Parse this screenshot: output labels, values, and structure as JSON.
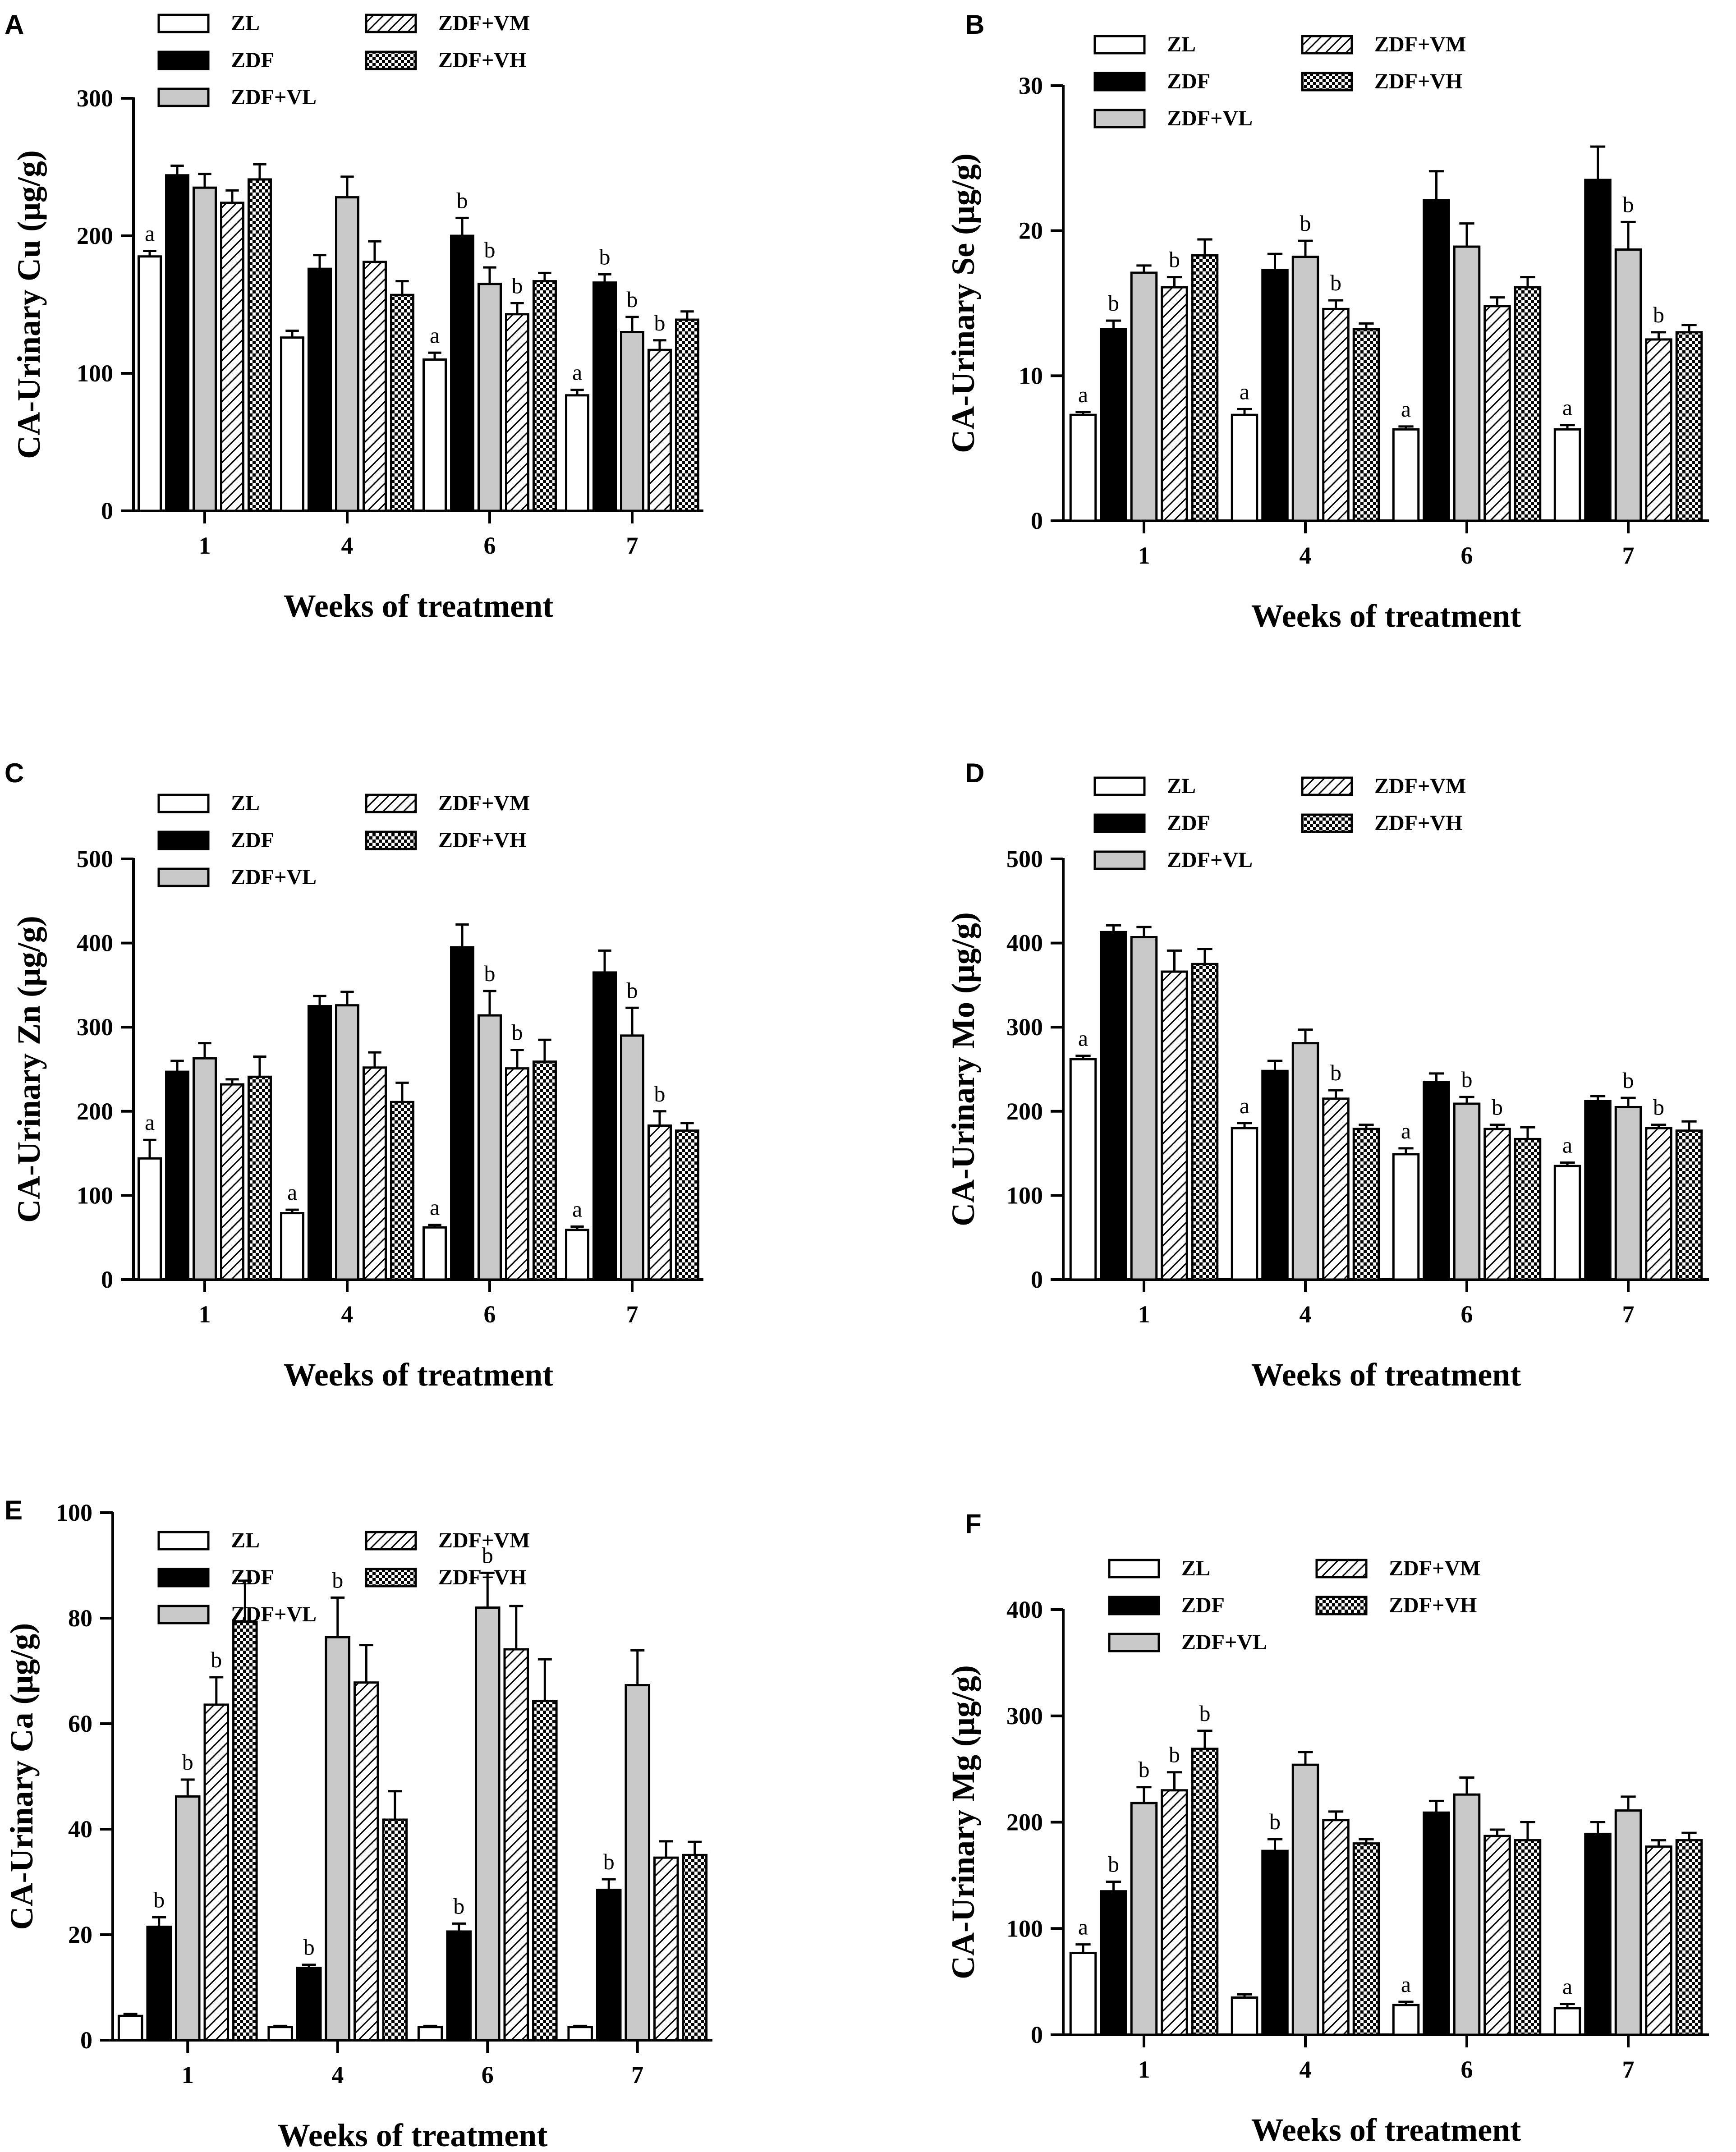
{
  "figure": {
    "legend": [
      {
        "name": "ZL",
        "fill": "#ffffff",
        "pattern": "none"
      },
      {
        "name": "ZDF",
        "fill": "#000000",
        "pattern": "none"
      },
      {
        "name": "ZDF+VL",
        "fill": "#c8c8c8",
        "pattern": "none"
      },
      {
        "name": "ZDF+VM",
        "fill": "#ffffff",
        "pattern": "hatch"
      },
      {
        "name": "ZDF+VH",
        "fill": "#ffffff",
        "pattern": "checker"
      }
    ]
  },
  "chart_data": [
    {
      "panel": "A",
      "type": "bar",
      "ylabel": "CA-Urinary Cu  (μg/g)",
      "xlabel": "Weeks of treatment",
      "categories": [
        "1",
        "4",
        "6",
        "7"
      ],
      "ylim": [
        0,
        300
      ],
      "yticks": [
        0,
        100,
        200,
        300
      ],
      "series": [
        {
          "name": "ZL",
          "values": [
            185,
            126,
            110,
            84
          ],
          "errors": [
            4,
            5,
            5,
            4
          ]
        },
        {
          "name": "ZDF",
          "values": [
            244,
            176,
            200,
            166
          ],
          "errors": [
            7,
            10,
            13,
            6
          ]
        },
        {
          "name": "ZDF+VL",
          "values": [
            235,
            228,
            165,
            130
          ],
          "errors": [
            10,
            15,
            12,
            11
          ]
        },
        {
          "name": "ZDF+VM",
          "values": [
            224,
            181,
            143,
            117
          ],
          "errors": [
            9,
            15,
            8,
            7
          ]
        },
        {
          "name": "ZDF+VH",
          "values": [
            241,
            157,
            167,
            139
          ],
          "errors": [
            11,
            10,
            6,
            6
          ]
        }
      ],
      "annotations": [
        [
          "a",
          null,
          null,
          null,
          null
        ],
        [
          null,
          null,
          null,
          null,
          null
        ],
        [
          "a",
          "b",
          "b",
          "b",
          null
        ],
        [
          "a",
          "b",
          "b",
          "b",
          null
        ]
      ]
    },
    {
      "panel": "B",
      "type": "bar",
      "ylabel": "CA-Urinary Se  (μg/g)",
      "xlabel": "Weeks of treatment",
      "categories": [
        "1",
        "4",
        "6",
        "7"
      ],
      "ylim": [
        0,
        30
      ],
      "yticks": [
        0,
        10,
        20,
        30
      ],
      "series": [
        {
          "name": "ZL",
          "values": [
            7.3,
            7.3,
            6.3,
            6.3
          ],
          "errors": [
            0.2,
            0.4,
            0.2,
            0.3
          ]
        },
        {
          "name": "ZDF",
          "values": [
            13.2,
            17.3,
            22.1,
            23.5
          ],
          "errors": [
            0.6,
            1.1,
            2.0,
            2.3
          ]
        },
        {
          "name": "ZDF+VL",
          "values": [
            17.1,
            18.2,
            18.9,
            18.7
          ],
          "errors": [
            0.5,
            1.1,
            1.6,
            1.9
          ]
        },
        {
          "name": "ZDF+VM",
          "values": [
            16.1,
            14.6,
            14.8,
            12.5
          ],
          "errors": [
            0.7,
            0.6,
            0.6,
            0.5
          ]
        },
        {
          "name": "ZDF+VH",
          "values": [
            18.3,
            13.2,
            16.1,
            13.0
          ],
          "errors": [
            1.1,
            0.4,
            0.7,
            0.5
          ]
        }
      ],
      "annotations": [
        [
          "a",
          "b",
          null,
          "b"
        ],
        [
          "a",
          null,
          "b",
          "b"
        ],
        [
          "a",
          null,
          null,
          null
        ],
        [
          "a",
          null,
          "b",
          "b"
        ]
      ]
    },
    {
      "panel": "C",
      "type": "bar",
      "ylabel": "CA-Urinary Zn  (μg/g)",
      "xlabel": "Weeks of treatment",
      "categories": [
        "1",
        "4",
        "6",
        "7"
      ],
      "ylim": [
        0,
        500
      ],
      "yticks": [
        0,
        100,
        200,
        300,
        400,
        500
      ],
      "series": [
        {
          "name": "ZL",
          "values": [
            144,
            79,
            62,
            59
          ],
          "errors": [
            22,
            4,
            3,
            4
          ]
        },
        {
          "name": "ZDF",
          "values": [
            247,
            325,
            395,
            365
          ],
          "errors": [
            13,
            12,
            27,
            26
          ]
        },
        {
          "name": "ZDF+VL",
          "values": [
            263,
            326,
            314,
            290
          ],
          "errors": [
            18,
            16,
            29,
            33
          ]
        },
        {
          "name": "ZDF+VM",
          "values": [
            232,
            252,
            251,
            183
          ],
          "errors": [
            6,
            18,
            22,
            17
          ]
        },
        {
          "name": "ZDF+VH",
          "values": [
            241,
            211,
            259,
            177
          ],
          "errors": [
            24,
            23,
            26,
            9
          ]
        }
      ],
      "annotations": [
        [
          "a",
          null,
          null,
          null
        ],
        [
          "a",
          null,
          null,
          null
        ],
        [
          "a",
          null,
          "b",
          "b"
        ],
        [
          "a",
          null,
          "b",
          "b"
        ]
      ]
    },
    {
      "panel": "D",
      "type": "bar",
      "ylabel": "CA-Urinary Mo  (μg/g)",
      "xlabel": "Weeks of treatment",
      "categories": [
        "1",
        "4",
        "6",
        "7"
      ],
      "ylim": [
        0,
        500
      ],
      "yticks": [
        0,
        100,
        200,
        300,
        400,
        500
      ],
      "series": [
        {
          "name": "ZL",
          "values": [
            262,
            180,
            149,
            135
          ],
          "errors": [
            4,
            6,
            7,
            4
          ]
        },
        {
          "name": "ZDF",
          "values": [
            413,
            248,
            235,
            212
          ],
          "errors": [
            8,
            12,
            10,
            6
          ]
        },
        {
          "name": "ZDF+VL",
          "values": [
            407,
            281,
            209,
            205
          ],
          "errors": [
            12,
            16,
            8,
            11
          ]
        },
        {
          "name": "ZDF+VM",
          "values": [
            366,
            215,
            179,
            180
          ],
          "errors": [
            25,
            10,
            5,
            4
          ]
        },
        {
          "name": "ZDF+VH",
          "values": [
            375,
            179,
            167,
            177
          ],
          "errors": [
            18,
            5,
            14,
            11
          ]
        }
      ],
      "annotations": [
        [
          "a",
          null,
          null,
          null,
          null
        ],
        [
          "a",
          null,
          null,
          "b"
        ],
        [
          "a",
          null,
          "b",
          "b"
        ],
        [
          "a",
          null,
          "b",
          "b"
        ]
      ]
    },
    {
      "panel": "E",
      "type": "bar",
      "ylabel": "CA-Urinary Ca  (μg/g)",
      "xlabel": "Weeks of treatment",
      "categories": [
        "1",
        "4",
        "6",
        "7"
      ],
      "ylim": [
        0,
        100
      ],
      "yticks": [
        0,
        20,
        40,
        60,
        80,
        100
      ],
      "series": [
        {
          "name": "ZL",
          "values": [
            4.6,
            2.5,
            2.5,
            2.5
          ],
          "errors": [
            0.4,
            0.2,
            0.2,
            0.2
          ]
        },
        {
          "name": "ZDF",
          "values": [
            21.5,
            13.7,
            20.6,
            28.5
          ],
          "errors": [
            1.8,
            0.6,
            1.5,
            2.0
          ]
        },
        {
          "name": "ZDF+VL",
          "values": [
            46.2,
            76.4,
            82.0,
            67.3
          ],
          "errors": [
            3.2,
            7.5,
            6.6,
            6.6
          ]
        },
        {
          "name": "ZDF+VM",
          "values": [
            63.6,
            67.8,
            74.1,
            34.6
          ],
          "errors": [
            5.2,
            7.1,
            8.2,
            3.1
          ]
        },
        {
          "name": "ZDF+VH",
          "values": [
            79.3,
            41.8,
            64.3,
            35.1
          ],
          "errors": [
            7.8,
            5.4,
            7.9,
            2.5
          ]
        }
      ],
      "annotations": [
        [
          null,
          "b",
          "b",
          "b"
        ],
        [
          null,
          "b",
          "b",
          null
        ],
        [
          null,
          "b",
          "b",
          null
        ],
        [
          null,
          "b",
          null,
          null
        ]
      ]
    },
    {
      "panel": "F",
      "type": "bar",
      "ylabel": "CA-Urinary Mg  (μg/g)",
      "xlabel": "Weeks of treatment",
      "categories": [
        "1",
        "4",
        "6",
        "7"
      ],
      "ylim": [
        0,
        400
      ],
      "yticks": [
        0,
        100,
        200,
        300,
        400
      ],
      "series": [
        {
          "name": "ZL",
          "values": [
            77,
            35,
            28,
            25
          ],
          "errors": [
            8,
            3,
            3,
            4
          ]
        },
        {
          "name": "ZDF",
          "values": [
            135,
            173,
            209,
            189
          ],
          "errors": [
            9,
            11,
            11,
            11
          ]
        },
        {
          "name": "ZDF+VL",
          "values": [
            218,
            254,
            226,
            211
          ],
          "errors": [
            15,
            12,
            16,
            13
          ]
        },
        {
          "name": "ZDF+VM",
          "values": [
            230,
            202,
            187,
            177
          ],
          "errors": [
            17,
            8,
            6,
            6
          ]
        },
        {
          "name": "ZDF+VH",
          "values": [
            269,
            180,
            183,
            183
          ],
          "errors": [
            17,
            4,
            17,
            7
          ]
        }
      ],
      "annotations": [
        [
          "a",
          "b",
          "b",
          "b",
          "b"
        ],
        [
          null,
          "b",
          null,
          null
        ],
        [
          "a",
          null,
          null,
          null
        ],
        [
          "a",
          null,
          null,
          null
        ]
      ]
    }
  ]
}
